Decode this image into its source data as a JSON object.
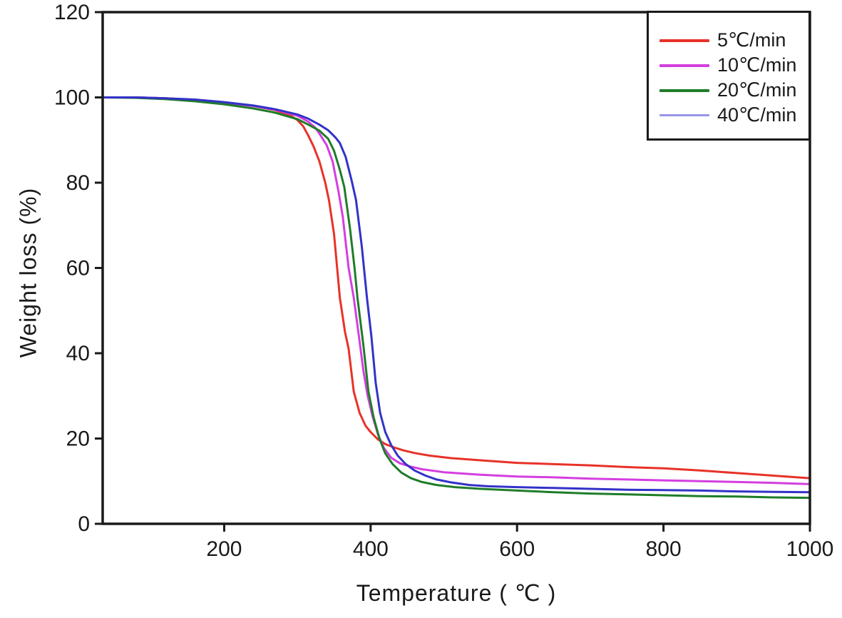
{
  "figure": {
    "background": "#ffffff",
    "axis_color": "#1a1a1a",
    "text_color": "#1a1a1a"
  },
  "chart_data": {
    "type": "line",
    "title": "",
    "xlabel": "Temperature ( ℃ )",
    "ylabel": "Weight loss (%)",
    "xlim": [
      34,
      1000
    ],
    "ylim": [
      0,
      120
    ],
    "x_ticks": [
      200,
      400,
      600,
      800,
      1000
    ],
    "y_ticks": [
      0,
      20,
      40,
      60,
      80,
      100,
      120
    ],
    "grid": false,
    "legend": {
      "position": "top-right",
      "border": true
    },
    "series": [
      {
        "name": "rate-5",
        "label": "5℃/min",
        "color": "#e83228",
        "legend_color": "#e83228",
        "points": [
          [
            34,
            100
          ],
          [
            80,
            100
          ],
          [
            120,
            99.8
          ],
          [
            160,
            99.4
          ],
          [
            200,
            98.8
          ],
          [
            240,
            98
          ],
          [
            270,
            97
          ],
          [
            290,
            95.8
          ],
          [
            300,
            94.7
          ],
          [
            308,
            93.2
          ],
          [
            315,
            91
          ],
          [
            322,
            88.5
          ],
          [
            330,
            85
          ],
          [
            338,
            80
          ],
          [
            343,
            76
          ],
          [
            350,
            68
          ],
          [
            358,
            53
          ],
          [
            365,
            45
          ],
          [
            370,
            41
          ],
          [
            377,
            31
          ],
          [
            385,
            26
          ],
          [
            393,
            23
          ],
          [
            400,
            21.5
          ],
          [
            410,
            19.8
          ],
          [
            420,
            18.7
          ],
          [
            432,
            17.9
          ],
          [
            445,
            17.2
          ],
          [
            460,
            16.6
          ],
          [
            480,
            16
          ],
          [
            510,
            15.4
          ],
          [
            550,
            14.9
          ],
          [
            600,
            14.3
          ],
          [
            650,
            14
          ],
          [
            700,
            13.7
          ],
          [
            750,
            13.3
          ],
          [
            800,
            13
          ],
          [
            850,
            12.5
          ],
          [
            900,
            11.9
          ],
          [
            950,
            11.3
          ],
          [
            1000,
            10.7
          ]
        ]
      },
      {
        "name": "rate-10",
        "label": "10℃/min",
        "color": "#d43ee0",
        "legend_color": "#d43ee0",
        "points": [
          [
            34,
            100
          ],
          [
            80,
            100
          ],
          [
            120,
            99.8
          ],
          [
            160,
            99.4
          ],
          [
            200,
            98.8
          ],
          [
            240,
            98
          ],
          [
            270,
            97.1
          ],
          [
            300,
            95.7
          ],
          [
            315,
            94.3
          ],
          [
            325,
            92.8
          ],
          [
            332,
            91
          ],
          [
            340,
            88.8
          ],
          [
            348,
            85
          ],
          [
            356,
            78
          ],
          [
            362,
            72
          ],
          [
            370,
            60
          ],
          [
            377,
            53
          ],
          [
            384,
            44
          ],
          [
            390,
            36
          ],
          [
            396,
            30
          ],
          [
            403,
            25
          ],
          [
            410,
            21
          ],
          [
            418,
            17.8
          ],
          [
            428,
            15.5
          ],
          [
            440,
            14.2
          ],
          [
            455,
            13.4
          ],
          [
            470,
            12.8
          ],
          [
            500,
            12.1
          ],
          [
            550,
            11.5
          ],
          [
            600,
            11.1
          ],
          [
            650,
            10.9
          ],
          [
            700,
            10.6
          ],
          [
            750,
            10.4
          ],
          [
            800,
            10.2
          ],
          [
            850,
            10
          ],
          [
            900,
            9.8
          ],
          [
            950,
            9.6
          ],
          [
            1000,
            9.3
          ]
        ]
      },
      {
        "name": "rate-20",
        "label": "20℃/min",
        "color": "#1e7d28",
        "legend_color": "#1e7d28",
        "points": [
          [
            34,
            100
          ],
          [
            80,
            99.9
          ],
          [
            120,
            99.6
          ],
          [
            160,
            99.1
          ],
          [
            200,
            98.4
          ],
          [
            240,
            97.4
          ],
          [
            270,
            96.4
          ],
          [
            300,
            94.9
          ],
          [
            315,
            93.6
          ],
          [
            330,
            92.2
          ],
          [
            342,
            90.3
          ],
          [
            350,
            87.5
          ],
          [
            358,
            83
          ],
          [
            364,
            79
          ],
          [
            372,
            69
          ],
          [
            378,
            60
          ],
          [
            382,
            53
          ],
          [
            390,
            42
          ],
          [
            397,
            31
          ],
          [
            404,
            25
          ],
          [
            412,
            20
          ],
          [
            420,
            16.5
          ],
          [
            430,
            14
          ],
          [
            442,
            12
          ],
          [
            455,
            10.7
          ],
          [
            470,
            9.8
          ],
          [
            490,
            9.1
          ],
          [
            515,
            8.6
          ],
          [
            550,
            8.2
          ],
          [
            600,
            7.8
          ],
          [
            650,
            7.4
          ],
          [
            700,
            7.1
          ],
          [
            750,
            6.9
          ],
          [
            800,
            6.7
          ],
          [
            850,
            6.5
          ],
          [
            900,
            6.4
          ],
          [
            950,
            6.2
          ],
          [
            1000,
            6.1
          ]
        ]
      },
      {
        "name": "rate-40",
        "label": "40℃/min",
        "color": "#3232c8",
        "legend_color": "#9696e8",
        "points": [
          [
            34,
            100
          ],
          [
            80,
            100
          ],
          [
            120,
            99.8
          ],
          [
            160,
            99.5
          ],
          [
            200,
            98.9
          ],
          [
            240,
            98.1
          ],
          [
            270,
            97.2
          ],
          [
            300,
            96
          ],
          [
            315,
            95
          ],
          [
            330,
            93.6
          ],
          [
            342,
            92.3
          ],
          [
            352,
            90.6
          ],
          [
            358,
            89.3
          ],
          [
            366,
            86
          ],
          [
            374,
            80.5
          ],
          [
            380,
            76
          ],
          [
            388,
            65
          ],
          [
            395,
            53
          ],
          [
            401,
            44
          ],
          [
            407,
            33
          ],
          [
            413,
            26
          ],
          [
            420,
            21.5
          ],
          [
            428,
            18.5
          ],
          [
            437,
            16
          ],
          [
            448,
            14
          ],
          [
            460,
            12.5
          ],
          [
            475,
            11.3
          ],
          [
            490,
            10.4
          ],
          [
            510,
            9.7
          ],
          [
            535,
            9.1
          ],
          [
            560,
            8.8
          ],
          [
            600,
            8.6
          ],
          [
            650,
            8.4
          ],
          [
            700,
            8.2
          ],
          [
            750,
            8
          ],
          [
            800,
            7.9
          ],
          [
            850,
            7.8
          ],
          [
            900,
            7.6
          ],
          [
            950,
            7.5
          ],
          [
            1000,
            7.4
          ]
        ]
      }
    ]
  }
}
